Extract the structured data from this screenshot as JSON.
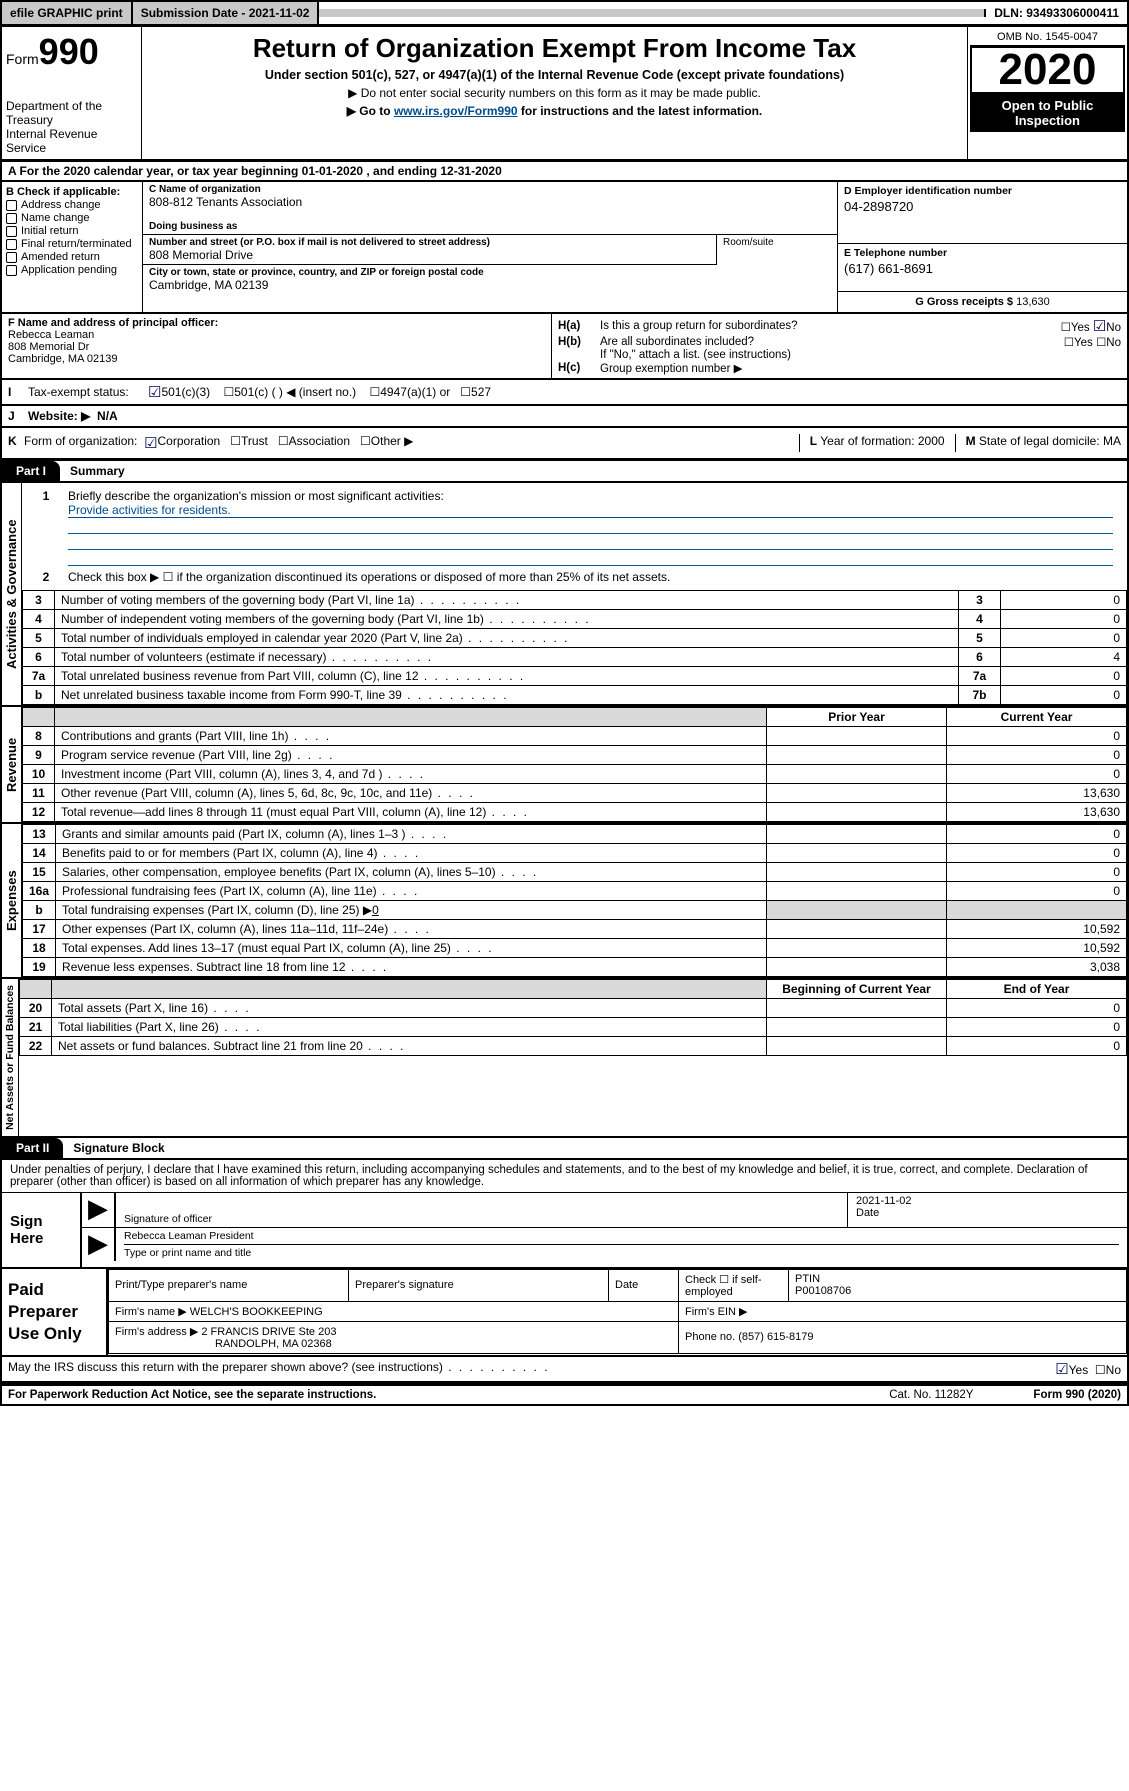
{
  "topbar": {
    "efile": "efile GRAPHIC print",
    "submission": "Submission Date - 2021-11-02",
    "dln": "DLN: 93493306000411"
  },
  "form": {
    "form_label": "Form",
    "form_number": "990",
    "title": "Return of Organization Exempt From Income Tax",
    "subtitle": "Under section 501(c), 527, or 4947(a)(1) of the Internal Revenue Code (except private foundations)",
    "note1": "▶ Do not enter social security numbers on this form as it may be made public.",
    "note2_pre": "▶ Go to ",
    "note2_link": "www.irs.gov/Form990",
    "note2_post": " for instructions and the latest information.",
    "dept1": "Department of the Treasury",
    "dept2": "Internal Revenue Service",
    "omb": "OMB No. 1545-0047",
    "year": "2020",
    "open1": "Open to Public",
    "open2": "Inspection"
  },
  "lineA": "A For the 2020 calendar year, or tax year beginning 01-01-2020   , and ending 12-31-2020",
  "boxB": {
    "header": "B Check if applicable:",
    "items": [
      "Address change",
      "Name change",
      "Initial return",
      "Final return/terminated",
      "Amended return",
      "Application pending"
    ]
  },
  "boxC": {
    "name_lbl": "C Name of organization",
    "name": "808-812 Tenants Association",
    "dba_lbl": "Doing business as",
    "street_lbl": "Number and street (or P.O. box if mail is not delivered to street address)",
    "street": "808 Memorial Drive",
    "suite_lbl": "Room/suite",
    "city_lbl": "City or town, state or province, country, and ZIP or foreign postal code",
    "city": "Cambridge, MA  02139"
  },
  "boxD": {
    "ein_lbl": "D Employer identification number",
    "ein": "04-2898720",
    "phone_lbl": "E Telephone number",
    "phone": "(617) 661-8691",
    "gross_lbl": "G Gross receipts $",
    "gross": "13,630"
  },
  "officer": {
    "lbl": "F  Name and address of principal officer:",
    "name": "Rebecca Leaman",
    "street": "808 Memorial Dr",
    "city": "Cambridge, MA  02139"
  },
  "h": {
    "ha_lbl": "H(a)",
    "ha_q": "Is this a group return for subordinates?",
    "hb_lbl": "H(b)",
    "hb_q": "Are all subordinates included?",
    "hb_note": "If \"No,\" attach a list. (see instructions)",
    "hc_lbl": "H(c)",
    "hc_q": "Group exemption number ▶",
    "yes": "Yes",
    "no": "No"
  },
  "rowI": {
    "lbl": "I",
    "text": "Tax-exempt status:",
    "o1": "501(c)(3)",
    "o2": "501(c) (  ) ◀ (insert no.)",
    "o3": "4947(a)(1) or",
    "o4": "527"
  },
  "rowJ": {
    "lbl": "J",
    "text": "Website: ▶",
    "val": "N/A"
  },
  "rowK": {
    "lbl": "K",
    "text": "Form of organization:",
    "o1": "Corporation",
    "o2": "Trust",
    "o3": "Association",
    "o4": "Other ▶",
    "l_lbl": "L",
    "l_text": "Year of formation: 2000",
    "m_lbl": "M",
    "m_text": "State of legal domicile: MA"
  },
  "part1": {
    "tab": "Part I",
    "title": "Summary"
  },
  "governance": {
    "side": "Activities & Governance",
    "l1": "Briefly describe the organization's mission or most significant activities:",
    "l1v": "Provide activities for residents.",
    "l2": "Check this box ▶ ☐  if the organization discontinued its operations or disposed of more than 25% of its net assets.",
    "rows": [
      {
        "n": "3",
        "t": "Number of voting members of the governing body (Part VI, line 1a)",
        "b": "3",
        "v": "0"
      },
      {
        "n": "4",
        "t": "Number of independent voting members of the governing body (Part VI, line 1b)",
        "b": "4",
        "v": "0"
      },
      {
        "n": "5",
        "t": "Total number of individuals employed in calendar year 2020 (Part V, line 2a)",
        "b": "5",
        "v": "0"
      },
      {
        "n": "6",
        "t": "Total number of volunteers (estimate if necessary)",
        "b": "6",
        "v": "4"
      },
      {
        "n": "7a",
        "t": "Total unrelated business revenue from Part VIII, column (C), line 12",
        "b": "7a",
        "v": "0"
      },
      {
        "n": "b",
        "t": "Net unrelated business taxable income from Form 990-T, line 39",
        "b": "7b",
        "v": "0"
      }
    ]
  },
  "revenue": {
    "side": "Revenue",
    "prior": "Prior Year",
    "current": "Current Year",
    "begin": "Beginning of Current Year",
    "end": "End of Year",
    "rows": [
      {
        "n": "8",
        "t": "Contributions and grants (Part VIII, line 1h)",
        "p": "",
        "c": "0"
      },
      {
        "n": "9",
        "t": "Program service revenue (Part VIII, line 2g)",
        "p": "",
        "c": "0"
      },
      {
        "n": "10",
        "t": "Investment income (Part VIII, column (A), lines 3, 4, and 7d )",
        "p": "",
        "c": "0"
      },
      {
        "n": "11",
        "t": "Other revenue (Part VIII, column (A), lines 5, 6d, 8c, 9c, 10c, and 11e)",
        "p": "",
        "c": "13,630"
      },
      {
        "n": "12",
        "t": "Total revenue—add lines 8 through 11 (must equal Part VIII, column (A), line 12)",
        "p": "",
        "c": "13,630"
      }
    ]
  },
  "expenses": {
    "side": "Expenses",
    "rows": [
      {
        "n": "13",
        "t": "Grants and similar amounts paid (Part IX, column (A), lines 1–3 )",
        "p": "",
        "c": "0"
      },
      {
        "n": "14",
        "t": "Benefits paid to or for members (Part IX, column (A), line 4)",
        "p": "",
        "c": "0"
      },
      {
        "n": "15",
        "t": "Salaries, other compensation, employee benefits (Part IX, column (A), lines 5–10)",
        "p": "",
        "c": "0"
      },
      {
        "n": "16a",
        "t": "Professional fundraising fees (Part IX, column (A), line 11e)",
        "p": "",
        "c": "0"
      }
    ],
    "l16b": "Total fundraising expenses (Part IX, column (D), line 25) ▶",
    "l16bv": "0",
    "rows2": [
      {
        "n": "17",
        "t": "Other expenses (Part IX, column (A), lines 11a–11d, 11f–24e)",
        "p": "",
        "c": "10,592"
      },
      {
        "n": "18",
        "t": "Total expenses. Add lines 13–17 (must equal Part IX, column (A), line 25)",
        "p": "",
        "c": "10,592"
      },
      {
        "n": "19",
        "t": "Revenue less expenses. Subtract line 18 from line 12",
        "p": "",
        "c": "3,038"
      }
    ]
  },
  "netassets": {
    "side": "Net Assets or Fund Balances",
    "rows": [
      {
        "n": "20",
        "t": "Total assets (Part X, line 16)",
        "p": "",
        "c": "0"
      },
      {
        "n": "21",
        "t": "Total liabilities (Part X, line 26)",
        "p": "",
        "c": "0"
      },
      {
        "n": "22",
        "t": "Net assets or fund balances. Subtract line 21 from line 20",
        "p": "",
        "c": "0"
      }
    ]
  },
  "part2": {
    "tab": "Part II",
    "title": "Signature Block"
  },
  "perjury": "Under penalties of perjury, I declare that I have examined this return, including accompanying schedules and statements, and to the best of my knowledge and belief, it is true, correct, and complete. Declaration of preparer (other than officer) is based on all information of which preparer has any knowledge.",
  "sign": {
    "here": "Sign Here",
    "sig_of": "Signature of officer",
    "date_lbl": "Date",
    "date": "2021-11-02",
    "name": "Rebecca Leaman  President",
    "name_lbl": "Type or print name and title"
  },
  "paid": {
    "lbl": "Paid Preparer Use Only",
    "h1": "Print/Type preparer's name",
    "h2": "Preparer's signature",
    "h3": "Date",
    "h4_pre": "Check ☐ if self-employed",
    "h5": "PTIN",
    "ptin": "P00108706",
    "firm_lbl": "Firm's name    ▶",
    "firm": "WELCH'S BOOKKEEPING",
    "ein_lbl": "Firm's EIN ▶",
    "addr_lbl": "Firm's address ▶",
    "addr1": "2 FRANCIS DRIVE Ste 203",
    "addr2": "RANDOLPH, MA  02368",
    "phone_lbl": "Phone no.",
    "phone": "(857) 615-8179"
  },
  "discuss": {
    "q": "May the IRS discuss this return with the preparer shown above? (see instructions)",
    "yes": "Yes",
    "no": "No"
  },
  "footer": {
    "pra": "For Paperwork Reduction Act Notice, see the separate instructions.",
    "cat": "Cat. No. 11282Y",
    "form": "Form 990 (2020)"
  }
}
